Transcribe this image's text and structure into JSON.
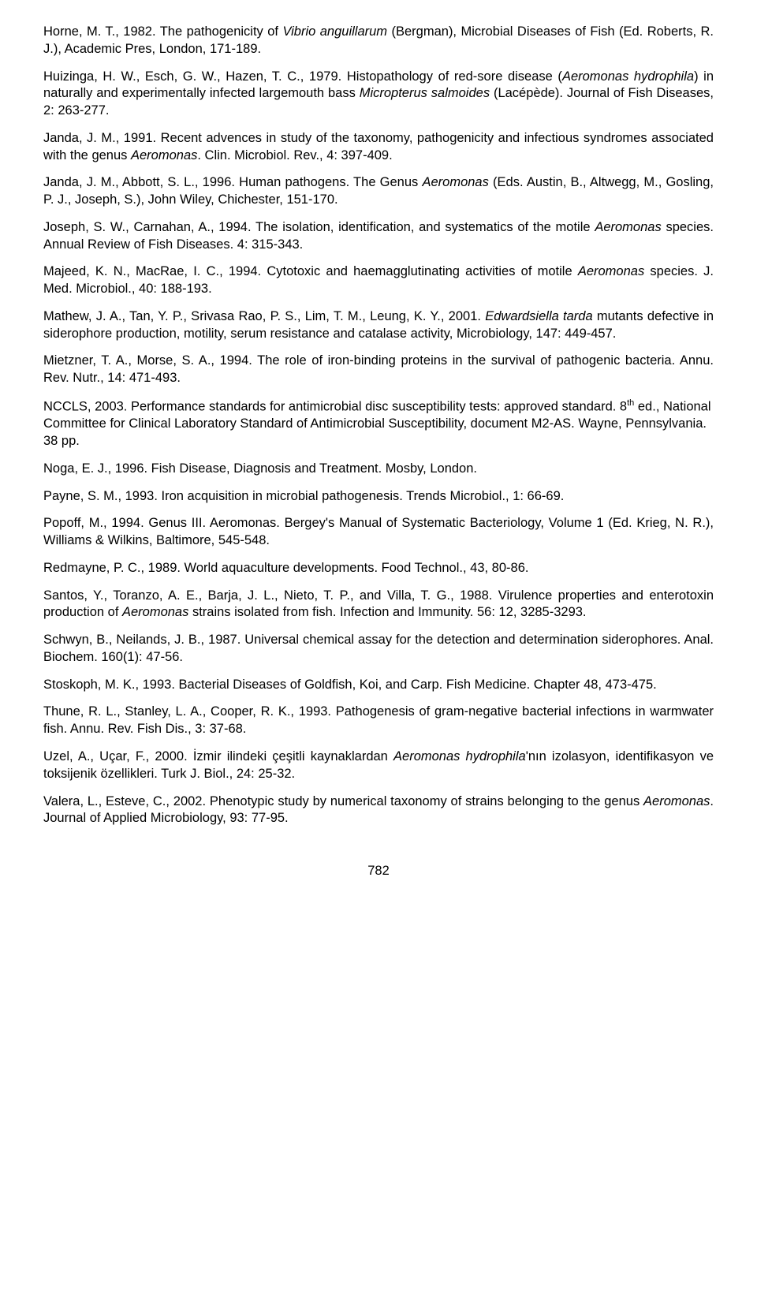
{
  "references": [
    {
      "part1": "Horne, M. T., 1982. The pathogenicity of ",
      "italic1": "Vibrio anguillarum",
      "part2": " (Bergman), Microbial Diseases of Fish (Ed. Roberts, R. J.), Academic Pres, London, 171-189."
    },
    {
      "part1": "Huizinga, H. W., Esch, G. W., Hazen, T. C., 1979. Histopathology of red-sore disease (",
      "italic1": "Aeromonas hydrophila",
      "part2": ") in naturally and experimentally infected largemouth bass ",
      "italic2": "Micropterus salmoides",
      "part3": " (Lacépède). Journal of Fish Diseases, 2: 263-277."
    },
    {
      "part1": "Janda, J. M., 1991. Recent advences in study of the taxonomy, pathogenicity and infectious syndromes associated with the genus ",
      "italic1": "Aeromonas",
      "part2": ". Clin. Microbiol. Rev., 4: 397-409."
    },
    {
      "part1": "Janda, J. M., Abbott, S. L., 1996. Human pathogens. The Genus ",
      "italic1": "Aeromonas",
      "part2": " (Eds. Austin, B., Altwegg, M., Gosling, P. J., Joseph, S.), John Wiley, Chichester, 151-170."
    },
    {
      "part1": "Joseph, S. W., Carnahan, A., 1994. The isolation, identification, and systematics of the motile ",
      "italic1": "Aeromonas",
      "part2": " species. Annual Review of Fish Diseases. 4: 315-343."
    },
    {
      "part1": "Majeed, K. N., MacRae, I. C., 1994. Cytotoxic and haemagglutinating activities of motile ",
      "italic1": "Aeromonas",
      "part2": " species. J. Med. Microbiol., 40: 188-193."
    },
    {
      "part1": "Mathew, J. A., Tan, Y. P., Srivasa Rao, P. S., Lim, T. M., Leung, K. Y., 2001. ",
      "italic1": "Edwardsiella tarda",
      "part2": " mutants defective in siderophore production, motility, serum resistance and catalase activity, Microbiology, 147: 449-457."
    },
    {
      "part1": "Mietzner, T. A., Morse, S. A., 1994. The role of iron-binding proteins in the survival of pathogenic bacteria. Annu. Rev. Nutr., 14: 471-493."
    },
    {
      "part1": "NCCLS, 2003. Performance standards for antimicrobial disc susceptibility tests: approved standard. 8",
      "sup1": "th",
      "part2": " ed., National Committee for Clinical Laboratory Standard of Antimicrobial Susceptibility, document M2-AS. Wayne, Pennsylvania. 38 pp."
    },
    {
      "part1": "Noga, E. J., 1996. Fish Disease, Diagnosis and Treatment. Mosby, London."
    },
    {
      "part1": "Payne, S. M., 1993. Iron acquisition in microbial pathogenesis. Trends Microbiol., 1: 66-69."
    },
    {
      "part1": "Popoff, M., 1994. Genus III. Aeromonas. Bergey's Manual of Systematic Bacteriology, Volume 1 (Ed. Krieg, N. R.), Williams & Wilkins, Baltimore, 545-548."
    },
    {
      "part1": "Redmayne, P. C., 1989. World aquaculture developments. Food Technol., 43, 80-86."
    },
    {
      "part1": "Santos, Y., Toranzo, A. E., Barja, J. L., Nieto, T. P., and Villa, T. G., 1988. Virulence properties and enterotoxin production of ",
      "italic1": "Aeromonas",
      "part2": " strains isolated from fish. Infection and Immunity. 56: 12, 3285-3293."
    },
    {
      "part1": "Schwyn, B., Neilands, J. B., 1987. Universal chemical assay for the detection and determination siderophores. Anal. Biochem. 160(1): 47-56."
    },
    {
      "part1": "Stoskoph, M. K., 1993. Bacterial Diseases of Goldfish, Koi, and Carp. Fish Medicine. Chapter 48, 473-475."
    },
    {
      "part1": "Thune, R. L., Stanley, L. A., Cooper, R. K., 1993. Pathogenesis of gram-negative bacterial infections in warmwater fish. Annu. Rev. Fish Dis., 3: 37-68."
    },
    {
      "part1": "Uzel, A., Uçar, F., 2000. İzmir ilindeki çeşitli kaynaklardan ",
      "italic1": "Aeromonas hydrophila",
      "part2": "'nın izolasyon, identifikasyon ve toksijenik özellikleri. Turk J. Biol., 24: 25-32."
    },
    {
      "part1": "Valera, L., Esteve, C., 2002. Phenotypic study by numerical taxonomy of strains belonging to the genus ",
      "italic1": "Aeromonas",
      "part2": ". Journal of Applied Microbiology, 93: 77-95."
    }
  ],
  "pageNumber": "782"
}
